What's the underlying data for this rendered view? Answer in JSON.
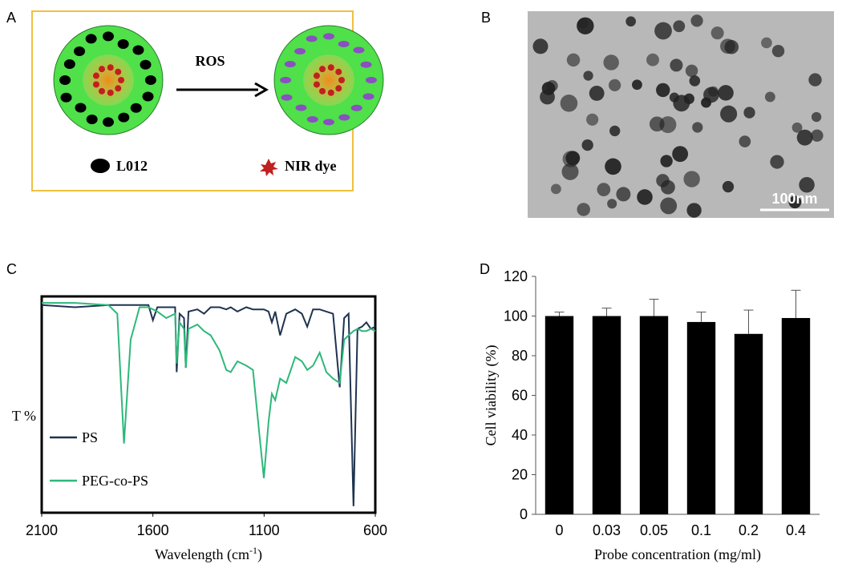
{
  "panels": {
    "a": {
      "label": "A",
      "arrow_label": "ROS",
      "legend": [
        "L012",
        "NIR dye"
      ]
    },
    "b": {
      "label": "B",
      "scale_bar": "100nm"
    },
    "c": {
      "label": "C"
    },
    "d": {
      "label": "D"
    }
  },
  "chart_data": [
    {
      "type": "line",
      "ylabel": "T %",
      "xlabel": "Wavelength (cm",
      "xlabel_sup": "-1",
      "xlabel_end": ")",
      "x": [
        2100,
        1950,
        1800,
        1760,
        1730,
        1700,
        1660,
        1620,
        1600,
        1580,
        1540,
        1500,
        1493,
        1480,
        1460,
        1452,
        1440,
        1400,
        1370,
        1340,
        1300,
        1270,
        1250,
        1220,
        1180,
        1150,
        1120,
        1101,
        1080,
        1065,
        1050,
        1028,
        1000,
        960,
        930,
        906,
        880,
        850,
        820,
        790,
        760,
        740,
        720,
        698,
        680,
        660,
        640,
        620,
        600
      ],
      "series": [
        {
          "name": "PS",
          "color": "#1f3350",
          "values": [
            96,
            95,
            96,
            96,
            96,
            96,
            96,
            96,
            89,
            95,
            95,
            95,
            65,
            92,
            90,
            67,
            93,
            94,
            92,
            95,
            95,
            94,
            95,
            93,
            95,
            94,
            94,
            94,
            93,
            88,
            93,
            82,
            92,
            94,
            92,
            86,
            94,
            94,
            93,
            92,
            58,
            90,
            92,
            3,
            85,
            86,
            88,
            85,
            86
          ]
        },
        {
          "name": "PEG-co-PS",
          "color": "#2db87a",
          "values": [
            97,
            97,
            96,
            92,
            32,
            80,
            95,
            95,
            94,
            93,
            90,
            92,
            69,
            88,
            85,
            67,
            85,
            87,
            84,
            82,
            75,
            66,
            65,
            70,
            68,
            66,
            35,
            16,
            42,
            55,
            52,
            62,
            60,
            72,
            70,
            66,
            68,
            74,
            65,
            62,
            60,
            80,
            82,
            84,
            85,
            84,
            84,
            85,
            84
          ]
        }
      ],
      "xlim": [
        2100,
        600
      ],
      "xticks": [
        2100,
        1600,
        1100,
        600
      ],
      "ylim": [
        0,
        100
      ],
      "legend": "lower left"
    },
    {
      "type": "bar",
      "ylabel": "Cell viability (%)",
      "xlabel": "Probe concentration (mg/ml)",
      "categories": [
        "0",
        "0.03",
        "0.05",
        "0.1",
        "0.2",
        "0.4"
      ],
      "values": [
        100,
        100,
        100,
        97,
        91,
        99
      ],
      "errors": [
        2,
        4,
        8.5,
        5,
        12,
        14
      ],
      "color": "#000000",
      "ylim": [
        0,
        120
      ],
      "yticks": [
        0,
        20,
        40,
        60,
        80,
        100,
        120
      ]
    }
  ]
}
